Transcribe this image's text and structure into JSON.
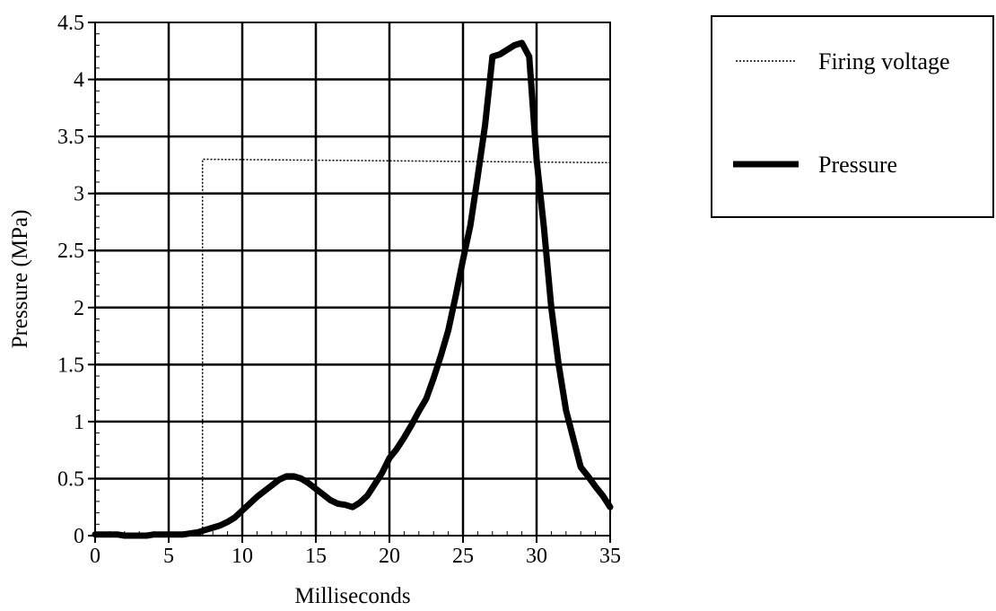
{
  "chart_data": {
    "type": "line",
    "xlabel": "Milliseconds",
    "ylabel": "Pressure (MPa)",
    "xlim": [
      0,
      35
    ],
    "ylim": [
      0,
      4.5
    ],
    "xticks": [
      "0",
      "5",
      "10",
      "15",
      "20",
      "25",
      "30",
      "35"
    ],
    "yticks": [
      "0",
      "0.5",
      "1",
      "1.5",
      "2",
      "2.5",
      "3",
      "3.5",
      "4",
      "4.5"
    ],
    "grid": true,
    "legend_position": "right",
    "series": [
      {
        "name": "Firing voltage",
        "style": "dotted",
        "color": "#000000",
        "x": [
          0,
          7.3,
          7.3,
          35
        ],
        "y": [
          0,
          0,
          3.3,
          3.27
        ]
      },
      {
        "name": "Pressure",
        "style": "thick",
        "color": "#000000",
        "x": [
          0,
          0.5,
          1,
          1.5,
          2,
          2.5,
          3,
          3.5,
          4,
          5,
          6,
          7,
          7.5,
          8,
          8.5,
          9,
          9.5,
          10,
          10.5,
          11,
          11.5,
          12,
          12.5,
          13,
          13.5,
          14,
          14.5,
          15,
          15.5,
          16,
          16.5,
          17,
          17.5,
          18,
          18.5,
          19,
          19.5,
          20,
          20.5,
          21,
          21.5,
          22,
          22.5,
          23,
          23.5,
          24,
          24.5,
          25,
          25.5,
          26,
          26.5,
          27,
          27.5,
          28,
          28.5,
          29,
          29.5,
          30,
          30.5,
          31,
          31.5,
          32,
          32.5,
          33,
          33.5,
          34,
          34.5,
          35
        ],
        "y": [
          0.01,
          0.01,
          0.01,
          0.01,
          0.0,
          0.0,
          0.0,
          0.0,
          0.01,
          0.01,
          0.01,
          0.03,
          0.05,
          0.07,
          0.09,
          0.12,
          0.16,
          0.22,
          0.28,
          0.34,
          0.39,
          0.44,
          0.49,
          0.52,
          0.52,
          0.5,
          0.46,
          0.41,
          0.36,
          0.31,
          0.28,
          0.27,
          0.25,
          0.29,
          0.35,
          0.45,
          0.55,
          0.68,
          0.76,
          0.86,
          0.97,
          1.09,
          1.2,
          1.38,
          1.58,
          1.8,
          2.1,
          2.42,
          2.72,
          3.15,
          3.6,
          4.2,
          4.22,
          4.26,
          4.3,
          4.32,
          4.2,
          3.3,
          2.7,
          2.0,
          1.5,
          1.1,
          0.85,
          0.6,
          0.52,
          0.43,
          0.35,
          0.25
        ]
      }
    ]
  }
}
